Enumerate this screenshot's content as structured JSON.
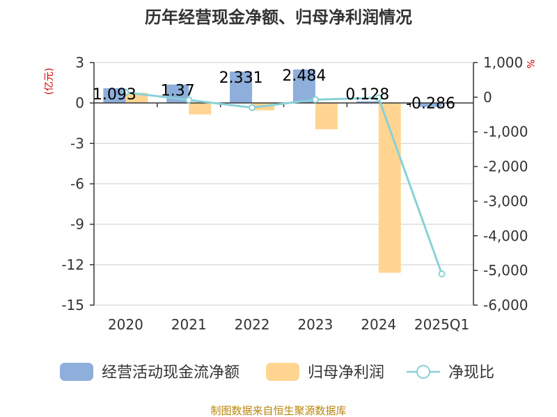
{
  "chart_data": {
    "type": "bar",
    "title": "历年经营现金净额、归母净利润情况",
    "categories": [
      "2020",
      "2021",
      "2022",
      "2023",
      "2024",
      "2025Q1"
    ],
    "series": [
      {
        "name": "经营活动现金流净额",
        "type": "bar",
        "axis": "left",
        "color": "#8eaedb",
        "values": [
          1.093,
          1.37,
          2.331,
          2.484,
          0.128,
          -0.286
        ]
      },
      {
        "name": "归母净利润",
        "type": "bar",
        "axis": "left",
        "color": "#ffd591",
        "values": [
          0.75,
          -0.85,
          -0.55,
          -1.95,
          -12.6,
          0
        ]
      },
      {
        "name": "净现比",
        "type": "line",
        "axis": "right",
        "color": "#88d1d6",
        "values": [
          140,
          -80,
          -300,
          -70,
          -20,
          -5100
        ]
      }
    ],
    "data_labels": [
      "1.093",
      "1.37",
      "2.331",
      "2.484",
      "0.128",
      "-0.286"
    ],
    "left_axis": {
      "unit": "(亿元)",
      "ylim": [
        -15,
        3
      ],
      "ticks": [
        3,
        0,
        -3,
        -6,
        -9,
        -12,
        -15
      ],
      "tick_labels": [
        "3",
        "0",
        "-3",
        "-6",
        "-9",
        "-12",
        "-15"
      ]
    },
    "right_axis": {
      "unit": "%",
      "ylim": [
        -6000,
        1000
      ],
      "ticks": [
        1000,
        0,
        -1000,
        -2000,
        -3000,
        -4000,
        -5000,
        -6000
      ],
      "tick_labels": [
        "1,000",
        "0",
        "-1,000",
        "-2,000",
        "-3,000",
        "-4,000",
        "-5,000",
        "-6,000"
      ]
    },
    "legend": {
      "placement": "bottom",
      "items": [
        "经营活动现金流净额",
        "归母净利润",
        "净现比"
      ]
    },
    "grid": true
  },
  "source": "制图数据来自恒生聚源数据库"
}
